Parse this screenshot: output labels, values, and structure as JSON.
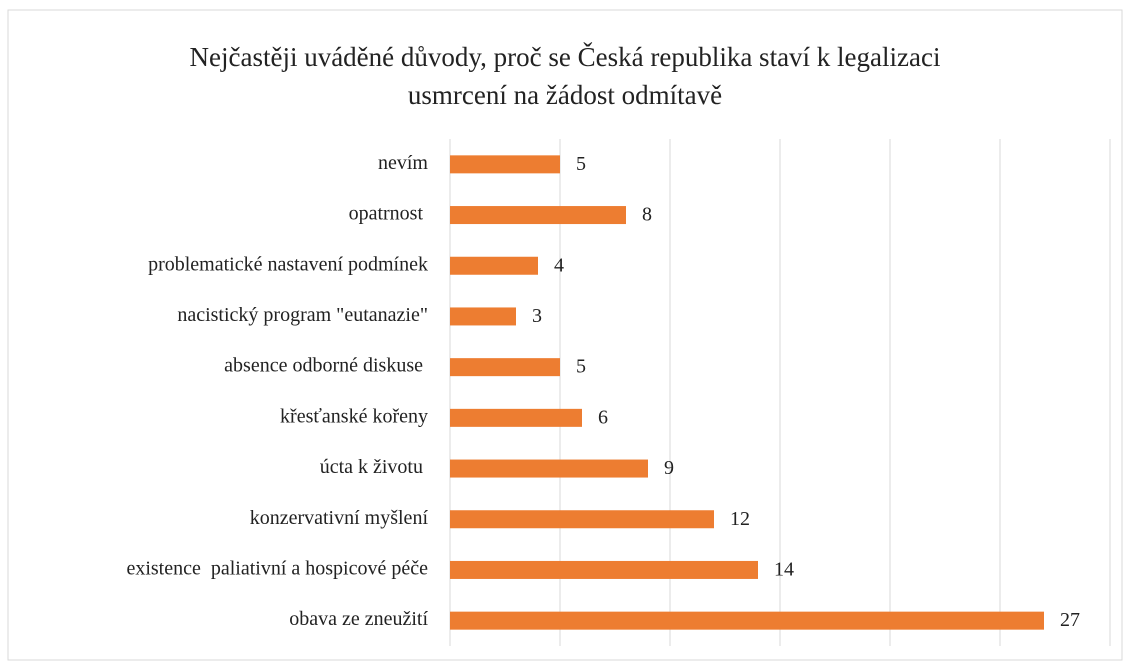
{
  "chart_data": {
    "type": "bar",
    "orientation": "horizontal",
    "title": "Nejčastěji uváděné důvody, proč se Česká republika staví k legalizaci usmrcení na žádost odmítavě",
    "categories": [
      "nevím",
      "opatrnost ",
      "problematické nastavení podmínek",
      "nacistický program \"eutanazie\"",
      "absence odborné diskuse ",
      "křesťanské kořeny",
      "úcta k životu ",
      "konzervativní myšlení",
      "existence  paliativní a hospicové péče",
      "obava ze zneužití"
    ],
    "values": [
      5,
      8,
      4,
      3,
      5,
      6,
      9,
      12,
      14,
      27
    ],
    "color": "#ed7d31",
    "xlim": [
      0,
      30
    ],
    "xticks": [
      0,
      5,
      10,
      15,
      20,
      25,
      30
    ],
    "grid": true
  }
}
